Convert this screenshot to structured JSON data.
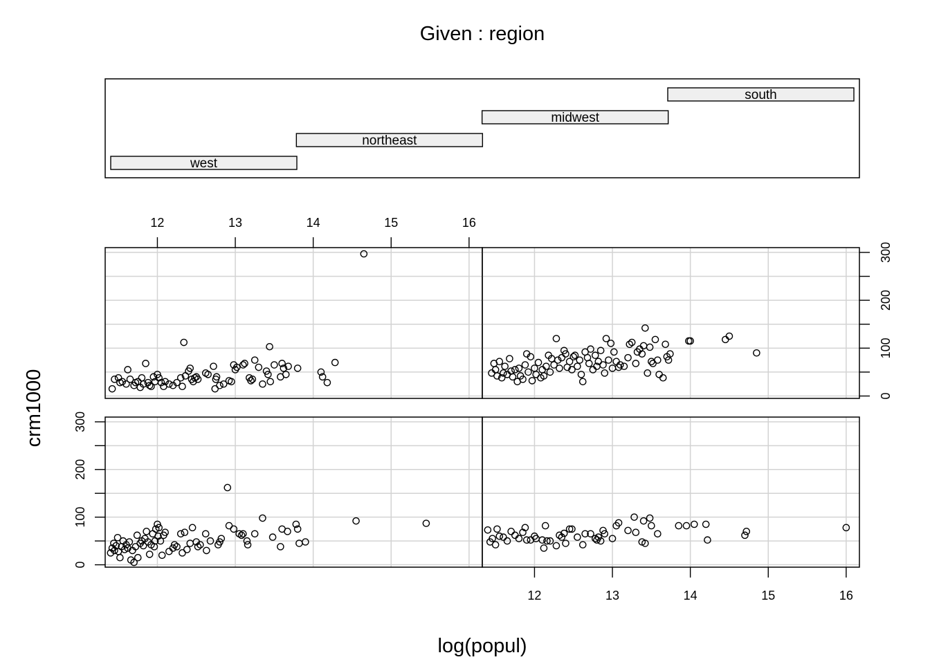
{
  "chart_data": {
    "type": "scatter",
    "kind": "coplot",
    "title": "Given : region",
    "xlabel": "log(popul)",
    "ylabel": "crm1000",
    "xlim": [
      11.33,
      16.17
    ],
    "ylim": [
      -5,
      310
    ],
    "xticks": [
      12,
      13,
      14,
      15,
      16
    ],
    "yticks": [
      0,
      100,
      200,
      300
    ],
    "grid": true,
    "given": {
      "levels": [
        "west",
        "northeast",
        "midwest",
        "south"
      ]
    },
    "panels": [
      {
        "region": "west",
        "points": [
          [
            11.4,
            25
          ],
          [
            11.42,
            35
          ],
          [
            11.44,
            45
          ],
          [
            11.45,
            30
          ],
          [
            11.47,
            40
          ],
          [
            11.49,
            57
          ],
          [
            11.5,
            28
          ],
          [
            11.52,
            15
          ],
          [
            11.54,
            38
          ],
          [
            11.56,
            50
          ],
          [
            11.58,
            32
          ],
          [
            11.6,
            42
          ],
          [
            11.62,
            35
          ],
          [
            11.64,
            48
          ],
          [
            11.66,
            10
          ],
          [
            11.68,
            30
          ],
          [
            11.7,
            5
          ],
          [
            11.72,
            38
          ],
          [
            11.74,
            62
          ],
          [
            11.75,
            15
          ],
          [
            11.78,
            45
          ],
          [
            11.8,
            50
          ],
          [
            11.82,
            40
          ],
          [
            11.84,
            55
          ],
          [
            11.86,
            70
          ],
          [
            11.88,
            48
          ],
          [
            11.9,
            22
          ],
          [
            11.92,
            42
          ],
          [
            11.94,
            65
          ],
          [
            11.96,
            38
          ],
          [
            11.97,
            50
          ],
          [
            11.98,
            75
          ],
          [
            12.0,
            85
          ],
          [
            12.01,
            60
          ],
          [
            12.02,
            78
          ],
          [
            12.04,
            50
          ],
          [
            12.06,
            20
          ],
          [
            12.08,
            62
          ],
          [
            12.1,
            68
          ],
          [
            12.15,
            28
          ],
          [
            12.2,
            35
          ],
          [
            12.22,
            42
          ],
          [
            12.25,
            38
          ],
          [
            12.3,
            65
          ],
          [
            12.32,
            25
          ],
          [
            12.35,
            68
          ],
          [
            12.38,
            32
          ],
          [
            12.42,
            45
          ],
          [
            12.45,
            78
          ],
          [
            12.5,
            48
          ],
          [
            12.52,
            38
          ],
          [
            12.55,
            42
          ],
          [
            12.62,
            65
          ],
          [
            12.63,
            30
          ],
          [
            12.68,
            50
          ],
          [
            12.78,
            42
          ],
          [
            12.8,
            48
          ],
          [
            12.82,
            55
          ],
          [
            12.9,
            162
          ],
          [
            12.92,
            82
          ],
          [
            12.98,
            75
          ],
          [
            13.05,
            65
          ],
          [
            13.08,
            62
          ],
          [
            13.1,
            65
          ],
          [
            13.15,
            50
          ],
          [
            13.16,
            42
          ],
          [
            13.25,
            65
          ],
          [
            13.35,
            98
          ],
          [
            13.48,
            58
          ],
          [
            13.58,
            38
          ],
          [
            13.6,
            75
          ],
          [
            13.67,
            70
          ],
          [
            13.78,
            85
          ],
          [
            13.8,
            75
          ],
          [
            13.82,
            45
          ],
          [
            13.9,
            48
          ],
          [
            14.55,
            92
          ],
          [
            15.45,
            87
          ]
        ]
      },
      {
        "region": "northeast",
        "points": [
          [
            11.4,
            73
          ],
          [
            11.43,
            48
          ],
          [
            11.46,
            55
          ],
          [
            11.5,
            42
          ],
          [
            11.52,
            75
          ],
          [
            11.55,
            60
          ],
          [
            11.6,
            58
          ],
          [
            11.65,
            50
          ],
          [
            11.7,
            70
          ],
          [
            11.75,
            62
          ],
          [
            11.8,
            55
          ],
          [
            11.85,
            68
          ],
          [
            11.88,
            78
          ],
          [
            11.9,
            52
          ],
          [
            11.95,
            52
          ],
          [
            12.0,
            60
          ],
          [
            12.02,
            55
          ],
          [
            12.1,
            52
          ],
          [
            12.12,
            35
          ],
          [
            12.14,
            82
          ],
          [
            12.16,
            50
          ],
          [
            12.2,
            50
          ],
          [
            12.28,
            40
          ],
          [
            12.32,
            62
          ],
          [
            12.35,
            58
          ],
          [
            12.38,
            66
          ],
          [
            12.4,
            45
          ],
          [
            12.45,
            75
          ],
          [
            12.48,
            75
          ],
          [
            12.55,
            58
          ],
          [
            12.62,
            42
          ],
          [
            12.65,
            65
          ],
          [
            12.72,
            65
          ],
          [
            12.78,
            55
          ],
          [
            12.8,
            52
          ],
          [
            12.82,
            58
          ],
          [
            12.85,
            50
          ],
          [
            12.88,
            72
          ],
          [
            12.9,
            65
          ],
          [
            13.0,
            55
          ],
          [
            13.05,
            82
          ],
          [
            13.08,
            88
          ],
          [
            13.2,
            72
          ],
          [
            13.28,
            100
          ],
          [
            13.3,
            68
          ],
          [
            13.38,
            48
          ],
          [
            13.4,
            92
          ],
          [
            13.42,
            45
          ],
          [
            13.48,
            98
          ],
          [
            13.5,
            82
          ],
          [
            13.58,
            65
          ],
          [
            13.85,
            82
          ],
          [
            13.95,
            82
          ],
          [
            14.05,
            85
          ],
          [
            14.2,
            85
          ],
          [
            14.22,
            52
          ],
          [
            14.7,
            62
          ],
          [
            14.72,
            70
          ],
          [
            16.0,
            78
          ]
        ]
      },
      {
        "region": "midwest",
        "points": [
          [
            11.42,
            15
          ],
          [
            11.45,
            35
          ],
          [
            11.5,
            38
          ],
          [
            11.52,
            28
          ],
          [
            11.55,
            30
          ],
          [
            11.6,
            25
          ],
          [
            11.62,
            55
          ],
          [
            11.65,
            35
          ],
          [
            11.7,
            22
          ],
          [
            11.72,
            28
          ],
          [
            11.75,
            30
          ],
          [
            11.78,
            18
          ],
          [
            11.8,
            38
          ],
          [
            11.82,
            25
          ],
          [
            11.85,
            68
          ],
          [
            11.88,
            28
          ],
          [
            11.9,
            22
          ],
          [
            11.92,
            20
          ],
          [
            11.95,
            40
          ],
          [
            11.97,
            30
          ],
          [
            12.0,
            45
          ],
          [
            12.02,
            38
          ],
          [
            12.05,
            28
          ],
          [
            12.08,
            20
          ],
          [
            12.1,
            30
          ],
          [
            12.15,
            25
          ],
          [
            12.2,
            22
          ],
          [
            12.25,
            28
          ],
          [
            12.3,
            38
          ],
          [
            12.32,
            20
          ],
          [
            12.34,
            112
          ],
          [
            12.36,
            42
          ],
          [
            12.4,
            52
          ],
          [
            12.42,
            58
          ],
          [
            12.44,
            35
          ],
          [
            12.46,
            30
          ],
          [
            12.48,
            38
          ],
          [
            12.5,
            40
          ],
          [
            12.52,
            35
          ],
          [
            12.62,
            48
          ],
          [
            12.65,
            45
          ],
          [
            12.72,
            62
          ],
          [
            12.74,
            15
          ],
          [
            12.75,
            35
          ],
          [
            12.76,
            40
          ],
          [
            12.8,
            22
          ],
          [
            12.85,
            25
          ],
          [
            12.92,
            32
          ],
          [
            12.95,
            30
          ],
          [
            12.98,
            65
          ],
          [
            13.0,
            55
          ],
          [
            13.02,
            60
          ],
          [
            13.1,
            65
          ],
          [
            13.12,
            68
          ],
          [
            13.18,
            38
          ],
          [
            13.2,
            32
          ],
          [
            13.22,
            35
          ],
          [
            13.25,
            75
          ],
          [
            13.3,
            60
          ],
          [
            13.35,
            25
          ],
          [
            13.4,
            52
          ],
          [
            13.42,
            45
          ],
          [
            13.44,
            103
          ],
          [
            13.45,
            30
          ],
          [
            13.5,
            65
          ],
          [
            13.58,
            40
          ],
          [
            13.6,
            68
          ],
          [
            13.62,
            58
          ],
          [
            13.65,
            45
          ],
          [
            13.68,
            62
          ],
          [
            13.8,
            58
          ],
          [
            14.1,
            50
          ],
          [
            14.12,
            40
          ],
          [
            14.18,
            28
          ],
          [
            14.28,
            70
          ],
          [
            14.65,
            297
          ]
        ]
      },
      {
        "region": "south",
        "points": [
          [
            11.45,
            48
          ],
          [
            11.48,
            68
          ],
          [
            11.5,
            55
          ],
          [
            11.52,
            42
          ],
          [
            11.55,
            72
          ],
          [
            11.58,
            38
          ],
          [
            11.6,
            48
          ],
          [
            11.62,
            62
          ],
          [
            11.65,
            45
          ],
          [
            11.68,
            78
          ],
          [
            11.7,
            52
          ],
          [
            11.72,
            40
          ],
          [
            11.75,
            55
          ],
          [
            11.78,
            30
          ],
          [
            11.8,
            58
          ],
          [
            11.82,
            42
          ],
          [
            11.85,
            35
          ],
          [
            11.88,
            65
          ],
          [
            11.9,
            88
          ],
          [
            11.92,
            50
          ],
          [
            11.95,
            82
          ],
          [
            11.97,
            32
          ],
          [
            12.0,
            58
          ],
          [
            12.02,
            45
          ],
          [
            12.05,
            70
          ],
          [
            12.08,
            38
          ],
          [
            12.1,
            55
          ],
          [
            12.12,
            42
          ],
          [
            12.15,
            62
          ],
          [
            12.18,
            85
          ],
          [
            12.2,
            50
          ],
          [
            12.22,
            78
          ],
          [
            12.25,
            65
          ],
          [
            12.28,
            120
          ],
          [
            12.3,
            75
          ],
          [
            12.32,
            58
          ],
          [
            12.35,
            80
          ],
          [
            12.38,
            95
          ],
          [
            12.4,
            88
          ],
          [
            12.42,
            60
          ],
          [
            12.45,
            72
          ],
          [
            12.48,
            55
          ],
          [
            12.5,
            82
          ],
          [
            12.52,
            85
          ],
          [
            12.55,
            62
          ],
          [
            12.58,
            75
          ],
          [
            12.6,
            45
          ],
          [
            12.62,
            30
          ],
          [
            12.65,
            92
          ],
          [
            12.68,
            80
          ],
          [
            12.7,
            68
          ],
          [
            12.72,
            98
          ],
          [
            12.75,
            55
          ],
          [
            12.78,
            85
          ],
          [
            12.8,
            62
          ],
          [
            12.82,
            72
          ],
          [
            12.85,
            95
          ],
          [
            12.88,
            65
          ],
          [
            12.9,
            48
          ],
          [
            12.92,
            120
          ],
          [
            12.95,
            75
          ],
          [
            12.98,
            110
          ],
          [
            13.0,
            58
          ],
          [
            13.02,
            92
          ],
          [
            13.05,
            72
          ],
          [
            13.08,
            60
          ],
          [
            13.1,
            65
          ],
          [
            13.15,
            62
          ],
          [
            13.2,
            80
          ],
          [
            13.22,
            108
          ],
          [
            13.25,
            112
          ],
          [
            13.3,
            68
          ],
          [
            13.32,
            92
          ],
          [
            13.35,
            98
          ],
          [
            13.38,
            88
          ],
          [
            13.4,
            105
          ],
          [
            13.42,
            142
          ],
          [
            13.45,
            48
          ],
          [
            13.48,
            102
          ],
          [
            13.5,
            72
          ],
          [
            13.52,
            68
          ],
          [
            13.55,
            118
          ],
          [
            13.58,
            75
          ],
          [
            13.6,
            45
          ],
          [
            13.65,
            38
          ],
          [
            13.68,
            108
          ],
          [
            13.7,
            82
          ],
          [
            13.72,
            75
          ],
          [
            13.74,
            88
          ],
          [
            13.98,
            115
          ],
          [
            14.0,
            115
          ],
          [
            14.45,
            118
          ],
          [
            14.5,
            125
          ],
          [
            14.85,
            90
          ]
        ]
      }
    ]
  }
}
